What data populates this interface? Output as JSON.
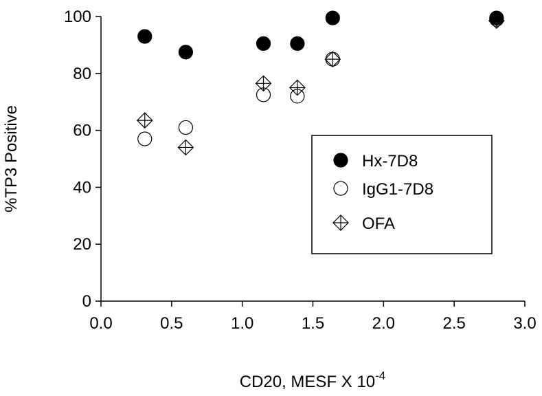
{
  "chart_data": {
    "type": "scatter",
    "xlabel": "CD20, MESF X 10",
    "xlabel_exponent": "-4",
    "ylabel": "%TP3 Positive",
    "xlim": [
      0.0,
      3.0
    ],
    "ylim": [
      0,
      100
    ],
    "xticks": [
      "0.0",
      "0.5",
      "1.0",
      "1.5",
      "2.0",
      "2.5",
      "3.0"
    ],
    "yticks": [
      "0",
      "20",
      "40",
      "60",
      "80",
      "100"
    ],
    "grid": false,
    "legend_position": "center-right",
    "series": [
      {
        "name": "Hx-7D8",
        "marker": "filled-circle",
        "color": "#000000",
        "x": [
          0.31,
          0.6,
          1.15,
          1.39,
          1.64,
          2.8
        ],
        "y": [
          93,
          87.5,
          90.5,
          90.5,
          99.5,
          99.5
        ]
      },
      {
        "name": "IgG1-7D8",
        "marker": "open-circle",
        "color": "#000000",
        "x": [
          0.31,
          0.6,
          1.15,
          1.39,
          1.64,
          2.8
        ],
        "y": [
          57,
          61,
          72.5,
          72,
          85,
          99
        ]
      },
      {
        "name": "OFA",
        "marker": "crossed-diamond",
        "color": "#000000",
        "x": [
          0.31,
          0.6,
          1.15,
          1.39,
          1.64,
          2.8
        ],
        "y": [
          63.5,
          54,
          76.5,
          75,
          85,
          98.5
        ]
      }
    ]
  }
}
